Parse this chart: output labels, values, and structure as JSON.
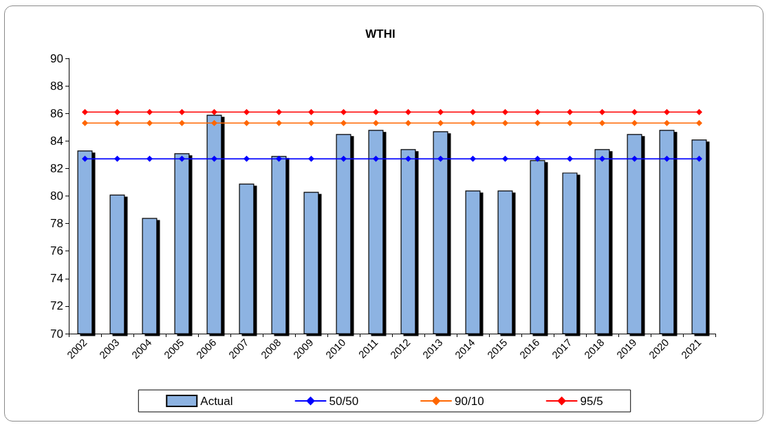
{
  "chart_data": {
    "type": "bar",
    "title": "WTHI",
    "categories": [
      "2002",
      "2003",
      "2004",
      "2005",
      "2006",
      "2007",
      "2008",
      "2009",
      "2010",
      "2011",
      "2012",
      "2013",
      "2014",
      "2015",
      "2016",
      "2017",
      "2018",
      "2019",
      "2020",
      "2021"
    ],
    "series": [
      {
        "name": "Actual",
        "color": "#8db3e2",
        "values": [
          83.3,
          80.1,
          78.4,
          83.1,
          85.9,
          80.9,
          82.9,
          80.3,
          84.5,
          84.8,
          83.4,
          84.7,
          80.4,
          80.4,
          82.6,
          81.7,
          83.4,
          84.5,
          84.8,
          84.1
        ]
      },
      {
        "name": "50/50",
        "type": "line",
        "color": "#0000ff",
        "values": [
          82.7,
          82.7,
          82.7,
          82.7,
          82.7,
          82.7,
          82.7,
          82.7,
          82.7,
          82.7,
          82.7,
          82.7,
          82.7,
          82.7,
          82.7,
          82.7,
          82.7,
          82.7,
          82.7,
          82.7
        ]
      },
      {
        "name": "90/10",
        "type": "line",
        "color": "#ff6600",
        "values": [
          85.3,
          85.3,
          85.3,
          85.3,
          85.3,
          85.3,
          85.3,
          85.3,
          85.3,
          85.3,
          85.3,
          85.3,
          85.3,
          85.3,
          85.3,
          85.3,
          85.3,
          85.3,
          85.3,
          85.3
        ]
      },
      {
        "name": "95/5",
        "type": "line",
        "color": "#ff0000",
        "values": [
          86.1,
          86.1,
          86.1,
          86.1,
          86.1,
          86.1,
          86.1,
          86.1,
          86.1,
          86.1,
          86.1,
          86.1,
          86.1,
          86.1,
          86.1,
          86.1,
          86.1,
          86.1,
          86.1,
          86.1
        ]
      }
    ],
    "ylim": [
      70,
      90
    ],
    "yticks": [
      70,
      72,
      74,
      76,
      78,
      80,
      82,
      84,
      86,
      88,
      90
    ],
    "grid": false,
    "legend": "bottom",
    "marker": "diamond",
    "line_style": "solid"
  }
}
